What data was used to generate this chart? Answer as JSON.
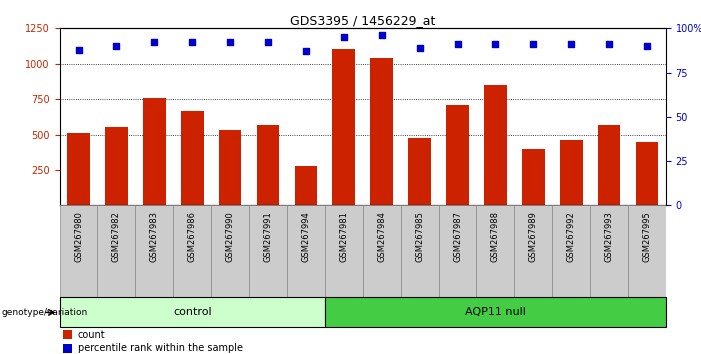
{
  "title": "GDS3395 / 1456229_at",
  "categories": [
    "GSM267980",
    "GSM267982",
    "GSM267983",
    "GSM267986",
    "GSM267990",
    "GSM267991",
    "GSM267994",
    "GSM267981",
    "GSM267984",
    "GSM267985",
    "GSM267987",
    "GSM267988",
    "GSM267989",
    "GSM267992",
    "GSM267993",
    "GSM267995"
  ],
  "bar_values": [
    510,
    555,
    755,
    665,
    530,
    565,
    280,
    1105,
    1040,
    475,
    710,
    850,
    395,
    460,
    570,
    445
  ],
  "percentile_values": [
    88,
    90,
    92,
    92,
    92,
    92,
    87,
    95,
    96,
    89,
    91,
    91,
    91,
    91,
    91,
    90
  ],
  "bar_color": "#cc2200",
  "dot_color": "#0000cc",
  "ylim_left": [
    0,
    1250
  ],
  "ylim_right": [
    0,
    100
  ],
  "yticks_left": [
    250,
    500,
    750,
    1000,
    1250
  ],
  "yticks_right": [
    0,
    25,
    50,
    75,
    100
  ],
  "control_count": 7,
  "aqp11_count": 9,
  "control_label": "control",
  "aqp11_label": "AQP11 null",
  "genotype_label": "genotype/variation",
  "legend_count": "count",
  "legend_percentile": "percentile rank within the sample",
  "control_color": "#ccffcc",
  "aqp11_color": "#44cc44",
  "xlabel_bg": "#cccccc",
  "grid_ticks": [
    500,
    750,
    1000
  ]
}
